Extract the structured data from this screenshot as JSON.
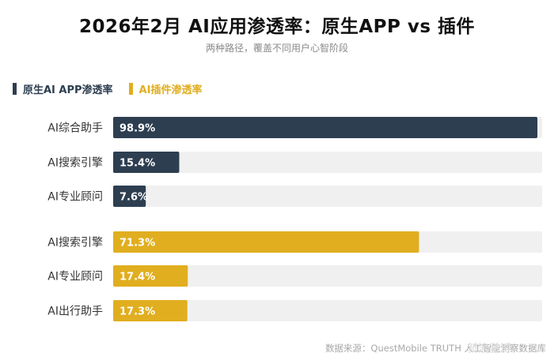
{
  "header": {
    "title": "2026年2月 AI应用渗透率：原生APP vs 插件",
    "subtitle": "两种路径，覆盖不同用户心智阶段"
  },
  "colors": {
    "native": "#2d3e50",
    "plugin": "#e0ae1f",
    "track": "#f0f0f0"
  },
  "legend": [
    {
      "label": "原生AI APP渗透率",
      "color": "#2d3e50"
    },
    {
      "label": "AI插件渗透率",
      "color": "#e0ae1f"
    }
  ],
  "chart_data": {
    "type": "bar",
    "orientation": "horizontal",
    "xlim": [
      0,
      100
    ],
    "series": [
      {
        "name": "原生AI APP渗透率",
        "categories": [
          "AI综合助手",
          "AI搜索引擎",
          "AI专业顾问"
        ],
        "values": [
          98.9,
          15.4,
          7.6
        ],
        "labels": [
          "98.9%",
          "15.4%",
          "7.6%"
        ]
      },
      {
        "name": "AI插件渗透率",
        "categories": [
          "AI搜索引擎",
          "AI专业顾问",
          "AI出行助手"
        ],
        "values": [
          71.3,
          17.4,
          17.3
        ],
        "labels": [
          "71.3%",
          "17.4%",
          "17.3%"
        ]
      }
    ]
  },
  "footer": {
    "source": "数据来源：QuestMobile TRUTH 人工智能洞察数据库",
    "watermark": "新浪微博"
  }
}
